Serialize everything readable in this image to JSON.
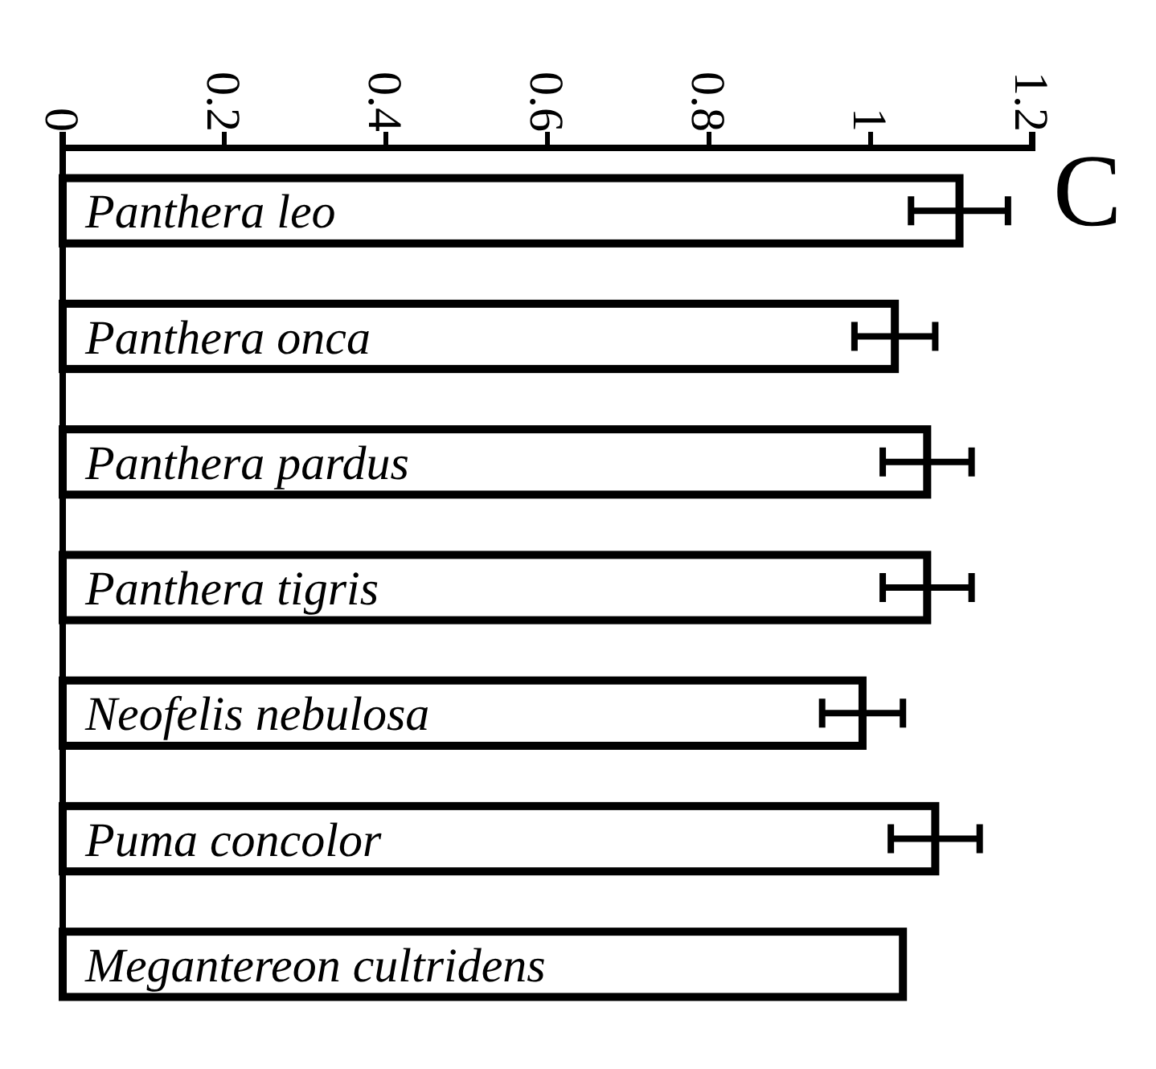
{
  "chart_data": {
    "type": "bar",
    "orientation": "horizontal",
    "categories": [
      "Panthera leo",
      "Panthera onca",
      "Panthera pardus",
      "Panthera tigris",
      "Neofelis nebulosa",
      "Puma concolor",
      "Megantereon cultridens"
    ],
    "values": [
      1.11,
      1.03,
      1.07,
      1.07,
      0.99,
      1.08,
      1.04
    ],
    "errors": [
      0.06,
      0.05,
      0.055,
      0.055,
      0.05,
      0.055,
      null
    ],
    "color": "#ffffff",
    "xlim": [
      0,
      1.2
    ],
    "xticks": [
      0,
      0.2,
      0.4,
      0.6,
      0.8,
      1,
      1.2
    ],
    "annotations": [
      "C"
    ],
    "grid": false
  }
}
